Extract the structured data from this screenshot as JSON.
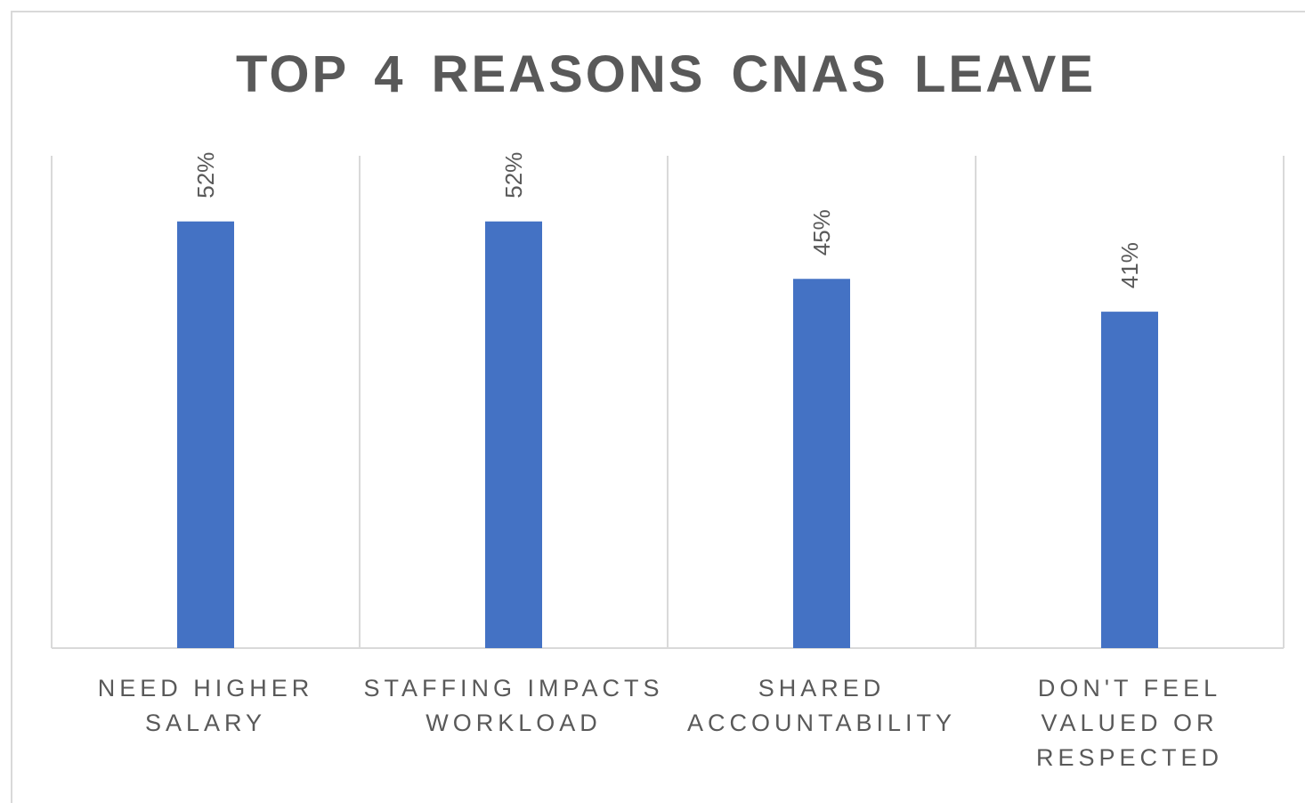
{
  "chart_data": {
    "type": "bar",
    "title": "TOP 4 REASONS CNAS LEAVE",
    "categories": [
      [
        "NEED HIGHER",
        "SALARY"
      ],
      [
        "STAFFING IMPACTS",
        "WORKLOAD"
      ],
      [
        "SHARED",
        "ACCOUNTABILITY"
      ],
      [
        "DON'T FEEL",
        "VALUED OR",
        "RESPECTED"
      ]
    ],
    "values": [
      52,
      52,
      45,
      41
    ],
    "data_labels": [
      "52%",
      "52%",
      "45%",
      "41%"
    ],
    "ylim": [
      0,
      60
    ],
    "grid": "vertical",
    "bar_color": "#4472c4",
    "grid_color": "#d9d9d9",
    "text_color": "#595959"
  }
}
